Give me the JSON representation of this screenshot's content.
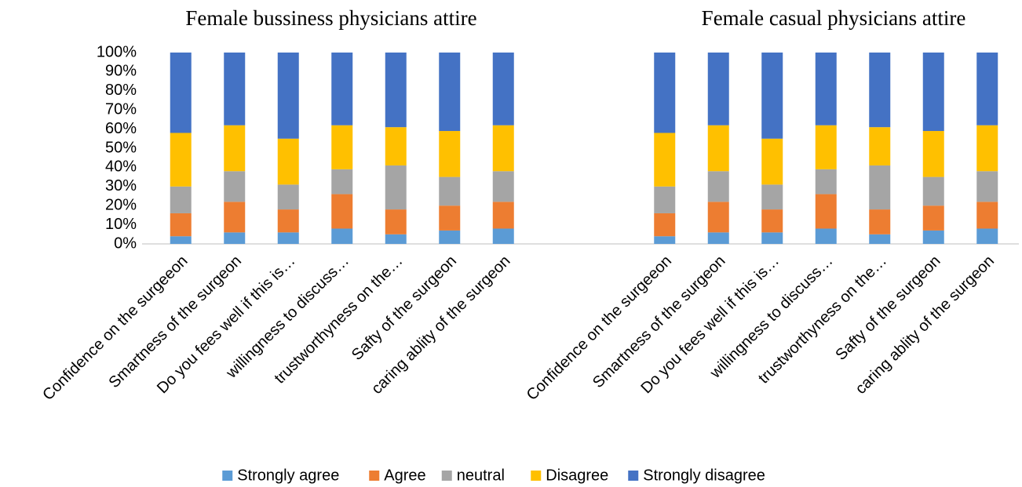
{
  "chart_data": {
    "type": "stacked_bar",
    "titles": [
      "Female bussiness physicians attire",
      "Female casual physicians attire"
    ],
    "categories": [
      "Confidence on the surgeeon",
      "Smartness of the surgeon",
      "Do you fees well if this is…",
      "willingness to discuss…",
      "trustworthyness on the…",
      "Safty of the surgeon",
      "caring ablity of the surgeon",
      null,
      null,
      "Confidence on the surgeeon",
      "Smartness of the surgeon",
      "Do you fees well if this is…",
      "willingness to discuss…",
      "trustworthyness on the…",
      "Safty of the surgeon",
      "caring ablity of the surgeon"
    ],
    "series": [
      {
        "name": "Strongly agree",
        "color": "#5b9bd5",
        "values": [
          4,
          6,
          6,
          8,
          5,
          7,
          8,
          null,
          null,
          4,
          6,
          6,
          8,
          5,
          7,
          8
        ]
      },
      {
        "name": "Agree",
        "color": "#ed7d31",
        "values": [
          12,
          16,
          12,
          18,
          13,
          13,
          14,
          null,
          null,
          12,
          16,
          12,
          18,
          13,
          13,
          14
        ]
      },
      {
        "name": "neutral",
        "color": "#a5a5a5",
        "values": [
          14,
          16,
          13,
          13,
          23,
          15,
          16,
          null,
          null,
          14,
          16,
          13,
          13,
          23,
          15,
          16
        ]
      },
      {
        "name": "Disagree",
        "color": "#ffc000",
        "values": [
          28,
          24,
          24,
          23,
          20,
          24,
          24,
          null,
          null,
          28,
          24,
          24,
          23,
          20,
          24,
          24
        ]
      },
      {
        "name": "Strongly disagree",
        "color": "#4472c4",
        "values": [
          42,
          38,
          45,
          38,
          39,
          41,
          38,
          null,
          null,
          42,
          38,
          45,
          38,
          39,
          41,
          38
        ]
      }
    ],
    "ylim": [
      0,
      100
    ],
    "yticks": [
      {
        "value": 0,
        "label": "0%"
      },
      {
        "value": 10,
        "label": "10%"
      },
      {
        "value": 20,
        "label": "20%"
      },
      {
        "value": 30,
        "label": "30%"
      },
      {
        "value": 40,
        "label": "40%"
      },
      {
        "value": 50,
        "label": "50%"
      },
      {
        "value": 60,
        "label": "60%"
      },
      {
        "value": 70,
        "label": "70%"
      },
      {
        "value": 80,
        "label": "80%"
      },
      {
        "value": 90,
        "label": "90%"
      },
      {
        "value": 100,
        "label": "100%"
      }
    ],
    "legend": "bottom"
  }
}
